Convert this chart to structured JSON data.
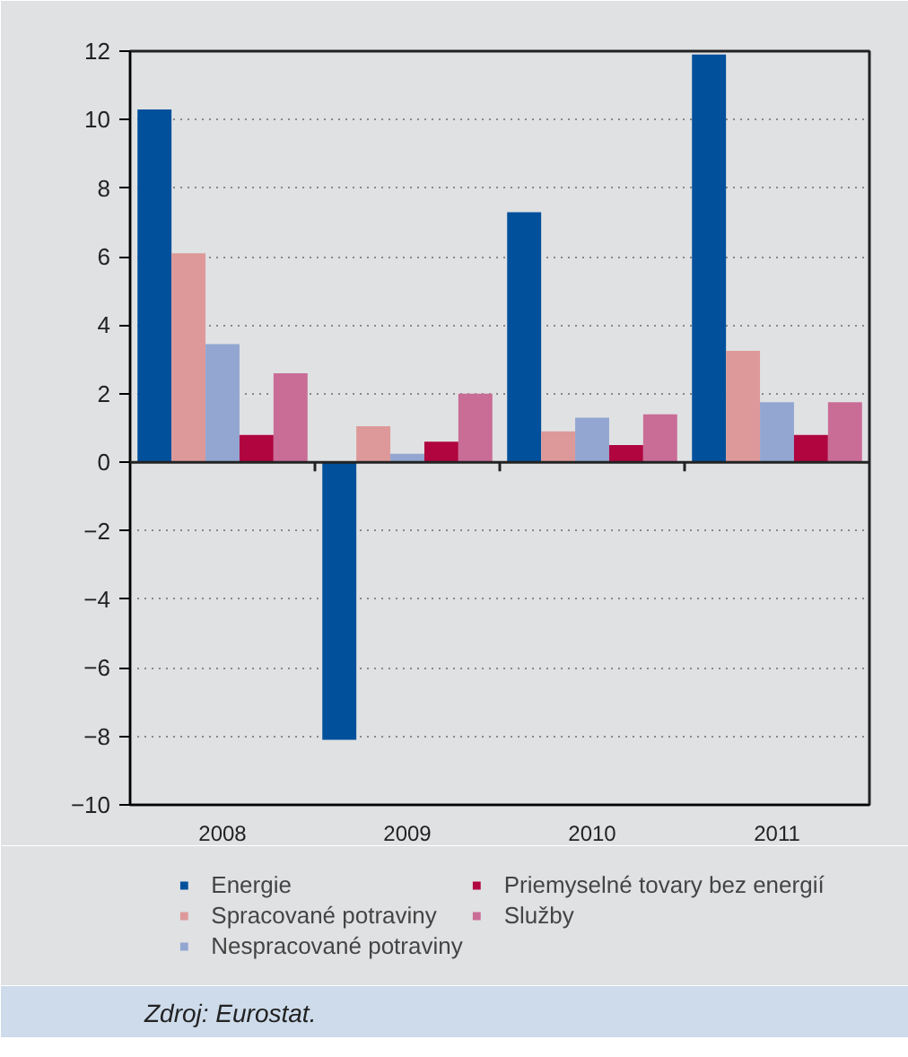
{
  "chart_data": {
    "type": "bar",
    "categories": [
      "2008",
      "2009",
      "2010",
      "2011"
    ],
    "series": [
      {
        "name": "Energie",
        "color": "#00509b",
        "values": [
          10.3,
          -8.1,
          7.3,
          11.9
        ]
      },
      {
        "name": "Spracované potraviny",
        "color": "#dd9999",
        "values": [
          6.1,
          1.05,
          0.9,
          3.25
        ]
      },
      {
        "name": "Nespracované potraviny",
        "color": "#92a6d1",
        "values": [
          3.45,
          0.25,
          1.3,
          1.75
        ]
      },
      {
        "name": "Priemyselné tovary bez energií",
        "color": "#b0053f",
        "values": [
          0.8,
          0.6,
          0.5,
          0.8
        ]
      },
      {
        "name": "Služby",
        "color": "#c96c96",
        "values": [
          2.6,
          2.0,
          1.4,
          1.75
        ]
      }
    ],
    "ylim": [
      -10,
      12
    ],
    "yticks": [
      -10,
      -8,
      -6,
      -4,
      -2,
      0,
      2,
      4,
      6,
      8,
      10,
      12
    ],
    "grid": "y",
    "legend": "bottom",
    "annotations": [
      "Zdroj: Eurostat."
    ]
  }
}
